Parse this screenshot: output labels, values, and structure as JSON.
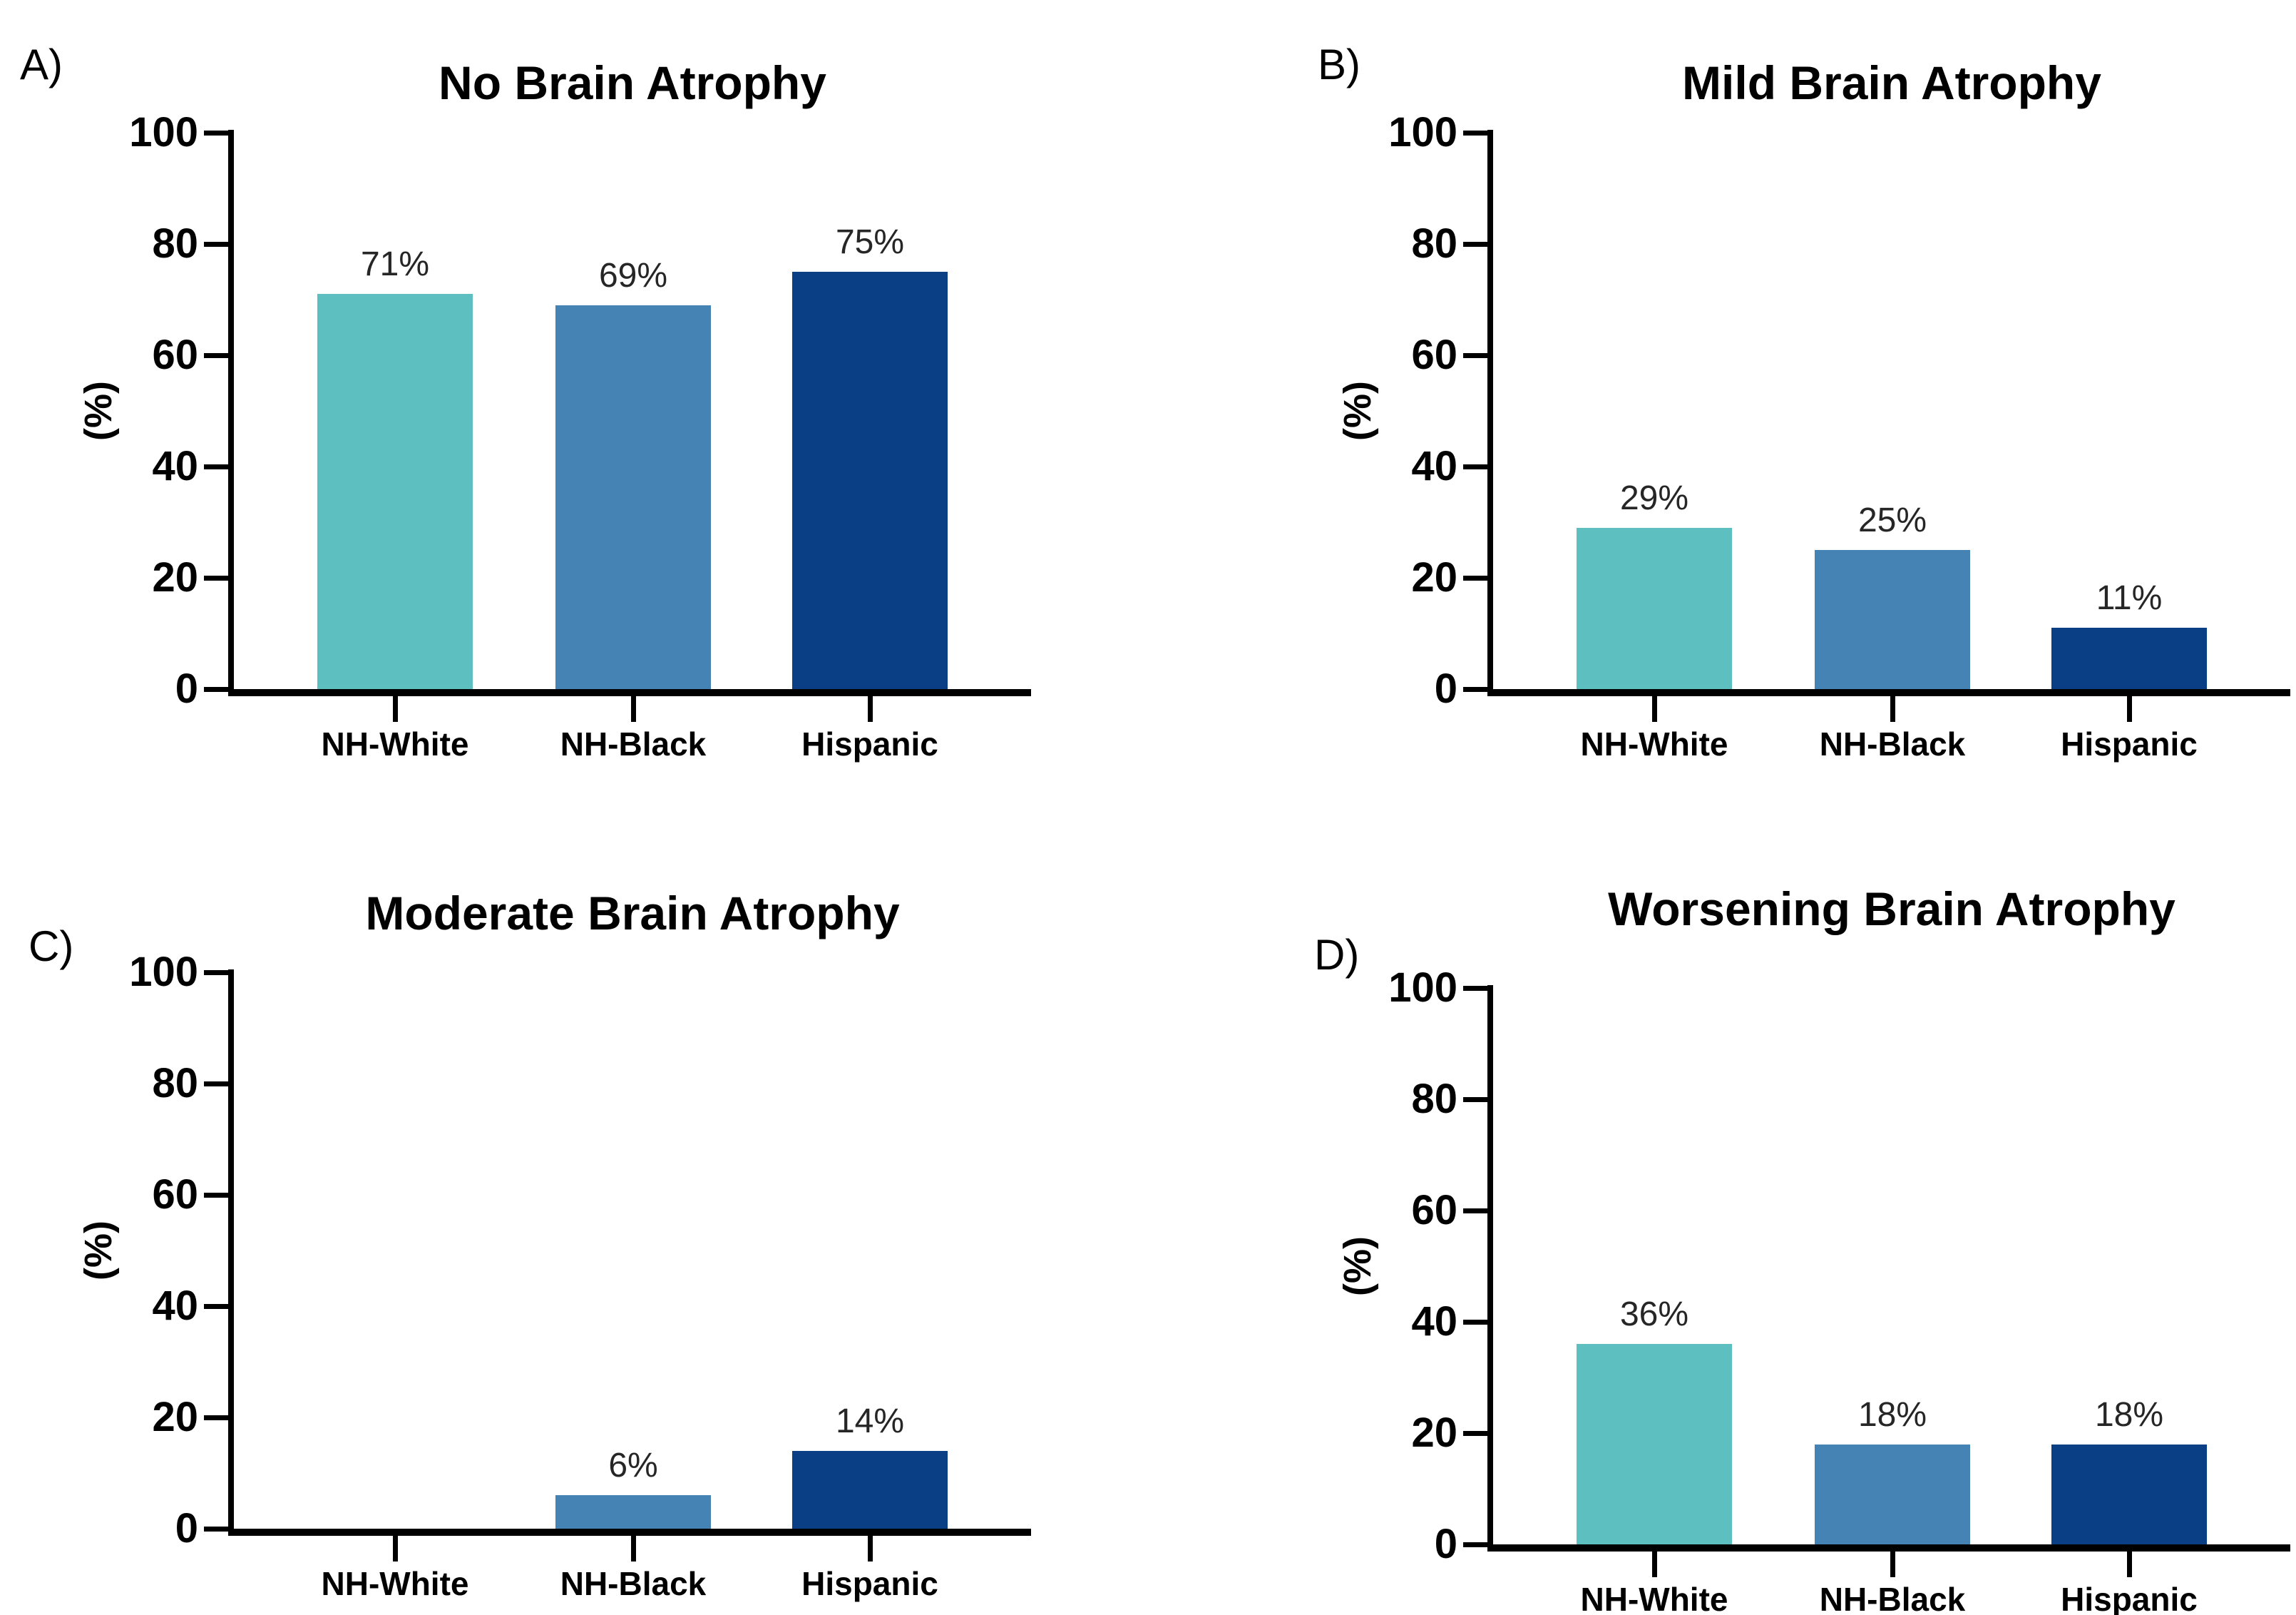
{
  "figure": {
    "background": "#ffffff",
    "description_visible_text_only": true
  },
  "colors": {
    "nh_white_bar": "#5EBFC1",
    "nh_black_bar": "#4583B4",
    "hispanic_bar": "#0A3F85",
    "axis": "#000000",
    "value_label_text": "#262626"
  },
  "chart_data": [
    {
      "type": "bar",
      "panel_label": "A)",
      "title": "No Brain Atrophy",
      "xlabel": "",
      "ylabel": "(%)",
      "ylim": [
        0,
        100
      ],
      "yticks": [
        0,
        20,
        40,
        60,
        80,
        100
      ],
      "grid": false,
      "legend": "none",
      "categories": [
        "NH-White",
        "NH-Black",
        "Hispanic"
      ],
      "values": [
        71,
        69,
        75
      ],
      "value_labels": [
        "71%",
        "69%",
        "75%"
      ],
      "bar_colors": [
        "#5EBFC1",
        "#4583B4",
        "#0A3F85"
      ]
    },
    {
      "type": "bar",
      "panel_label": "B)",
      "title": "Mild Brain Atrophy",
      "xlabel": "",
      "ylabel": "(%)",
      "ylim": [
        0,
        100
      ],
      "yticks": [
        0,
        20,
        40,
        60,
        80,
        100
      ],
      "grid": false,
      "legend": "none",
      "categories": [
        "NH-White",
        "NH-Black",
        "Hispanic"
      ],
      "values": [
        29,
        25,
        11
      ],
      "value_labels": [
        "29%",
        "25%",
        "11%"
      ],
      "bar_colors": [
        "#5EBFC1",
        "#4583B4",
        "#0A3F85"
      ]
    },
    {
      "type": "bar",
      "panel_label": "C)",
      "title": "Moderate Brain Atrophy",
      "xlabel": "",
      "ylabel": "(%)",
      "ylim": [
        0,
        100
      ],
      "yticks": [
        0,
        20,
        40,
        60,
        80,
        100
      ],
      "grid": false,
      "legend": "none",
      "categories": [
        "NH-White",
        "NH-Black",
        "Hispanic"
      ],
      "values": [
        0,
        6,
        14
      ],
      "value_labels": [
        "",
        "6%",
        "14%"
      ],
      "bar_colors": [
        "#5EBFC1",
        "#4583B4",
        "#0A3F85"
      ]
    },
    {
      "type": "bar",
      "panel_label": "D)",
      "title": "Worsening Brain Atrophy",
      "xlabel": "",
      "ylabel": "(%)",
      "ylim": [
        0,
        100
      ],
      "yticks": [
        0,
        20,
        40,
        60,
        80,
        100
      ],
      "grid": false,
      "legend": "none",
      "categories": [
        "NH-White",
        "NH-Black",
        "Hispanic"
      ],
      "values": [
        36,
        18,
        18
      ],
      "value_labels": [
        "36%",
        "18%",
        "18%"
      ],
      "bar_colors": [
        "#5EBFC1",
        "#4583B4",
        "#0A3F85"
      ]
    }
  ]
}
